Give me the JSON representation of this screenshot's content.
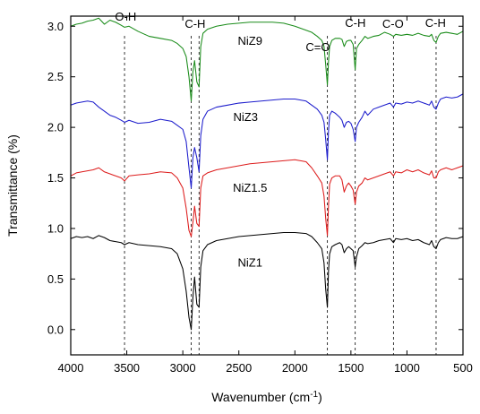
{
  "chart_data": {
    "type": "line",
    "title": "",
    "xlabel": "Wavenumber (cm-1)",
    "xlabel_main": "Wavenumber (cm",
    "xlabel_sup": "-1",
    "xlabel_tail": ")",
    "ylabel": "Transmittance (%)",
    "xlim": [
      4000,
      500
    ],
    "ylim": [
      -0.25,
      3.1
    ],
    "x_ticks": [
      4000,
      3500,
      3000,
      2500,
      2000,
      1500,
      1000,
      500
    ],
    "y_ticks": [
      0.0,
      0.5,
      1.0,
      1.5,
      2.0,
      2.5,
      3.0
    ],
    "reference_lines": [
      3520,
      2925,
      2855,
      1710,
      1462,
      1120,
      740
    ],
    "annotations": [
      {
        "text": "O-H",
        "x": 3510,
        "y": 3.09
      },
      {
        "text": "C-H",
        "x": 2890,
        "y": 3.02
      },
      {
        "text": "C=O",
        "x": 1795,
        "y": 2.79
      },
      {
        "text": "C-H",
        "x": 1460,
        "y": 3.03
      },
      {
        "text": "C-O",
        "x": 1125,
        "y": 3.02
      },
      {
        "text": "C-H",
        "x": 745,
        "y": 3.03
      }
    ],
    "series": [
      {
        "name": "NiZ9",
        "color": "#1a8c1a",
        "label_pos": {
          "x": 2400,
          "y": 2.85
        },
        "x": [
          4000,
          3950,
          3900,
          3850,
          3800,
          3750,
          3700,
          3650,
          3600,
          3550,
          3520,
          3480,
          3400,
          3300,
          3200,
          3100,
          3050,
          3000,
          2970,
          2945,
          2925,
          2910,
          2895,
          2875,
          2855,
          2840,
          2820,
          2780,
          2700,
          2600,
          2500,
          2400,
          2300,
          2200,
          2100,
          2000,
          1900,
          1850,
          1800,
          1760,
          1740,
          1725,
          1710,
          1700,
          1690,
          1670,
          1640,
          1600,
          1580,
          1560,
          1540,
          1520,
          1500,
          1480,
          1462,
          1450,
          1430,
          1400,
          1375,
          1350,
          1300,
          1250,
          1200,
          1150,
          1120,
          1100,
          1050,
          1000,
          950,
          900,
          850,
          800,
          780,
          760,
          740,
          720,
          700,
          650,
          600,
          550,
          500
        ],
        "values": [
          3.0,
          3.02,
          3.03,
          3.05,
          3.06,
          3.08,
          3.02,
          3.06,
          3.04,
          3.01,
          2.99,
          3.0,
          2.95,
          2.9,
          2.88,
          2.86,
          2.83,
          2.78,
          2.7,
          2.5,
          2.26,
          2.55,
          2.66,
          2.45,
          2.4,
          2.8,
          2.93,
          2.97,
          3.0,
          3.02,
          3.03,
          3.04,
          3.04,
          3.04,
          3.03,
          3.0,
          2.96,
          2.94,
          2.9,
          2.86,
          2.8,
          2.62,
          2.42,
          2.65,
          2.8,
          2.86,
          2.88,
          2.88,
          2.87,
          2.8,
          2.85,
          2.86,
          2.86,
          2.82,
          2.57,
          2.78,
          2.82,
          2.86,
          2.9,
          2.88,
          2.9,
          2.91,
          2.94,
          2.92,
          2.9,
          2.92,
          2.91,
          2.92,
          2.91,
          2.93,
          2.91,
          2.9,
          2.92,
          2.86,
          2.84,
          2.9,
          2.93,
          2.94,
          2.93,
          2.92,
          2.95
        ]
      },
      {
        "name": "NiZ3",
        "color": "#1c1ccc",
        "label_pos": {
          "x": 2440,
          "y": 2.1
        },
        "x": [
          4000,
          3950,
          3900,
          3850,
          3800,
          3750,
          3700,
          3650,
          3600,
          3550,
          3520,
          3480,
          3400,
          3300,
          3200,
          3100,
          3050,
          3000,
          2970,
          2945,
          2925,
          2910,
          2895,
          2875,
          2855,
          2840,
          2820,
          2780,
          2700,
          2600,
          2500,
          2400,
          2300,
          2200,
          2100,
          2000,
          1900,
          1850,
          1800,
          1760,
          1740,
          1725,
          1710,
          1700,
          1690,
          1670,
          1640,
          1600,
          1580,
          1560,
          1540,
          1520,
          1500,
          1480,
          1462,
          1450,
          1430,
          1400,
          1375,
          1350,
          1300,
          1250,
          1200,
          1150,
          1120,
          1100,
          1050,
          1000,
          950,
          900,
          850,
          800,
          780,
          760,
          740,
          720,
          700,
          650,
          600,
          550,
          500
        ],
        "values": [
          2.22,
          2.24,
          2.25,
          2.26,
          2.25,
          2.2,
          2.16,
          2.12,
          2.1,
          2.07,
          2.05,
          2.07,
          2.04,
          2.05,
          2.08,
          2.06,
          2.02,
          1.98,
          1.86,
          1.6,
          1.4,
          1.7,
          1.8,
          1.7,
          1.56,
          1.92,
          2.08,
          2.16,
          2.2,
          2.22,
          2.24,
          2.25,
          2.26,
          2.27,
          2.28,
          2.28,
          2.26,
          2.22,
          2.18,
          2.12,
          2.05,
          1.88,
          1.68,
          1.96,
          2.12,
          2.16,
          2.14,
          2.1,
          2.07,
          2.0,
          2.05,
          2.06,
          2.04,
          1.98,
          1.86,
          2.0,
          2.05,
          2.1,
          2.16,
          2.12,
          2.18,
          2.2,
          2.22,
          2.24,
          2.2,
          2.24,
          2.23,
          2.25,
          2.24,
          2.26,
          2.24,
          2.22,
          2.26,
          2.2,
          2.18,
          2.24,
          2.28,
          2.3,
          2.29,
          2.3,
          2.33
        ]
      },
      {
        "name": "NiZ1.5",
        "color": "#dd1c1c",
        "label_pos": {
          "x": 2400,
          "y": 1.4
        },
        "x": [
          4000,
          3950,
          3900,
          3850,
          3800,
          3750,
          3700,
          3650,
          3600,
          3550,
          3520,
          3480,
          3400,
          3300,
          3200,
          3100,
          3050,
          3000,
          2970,
          2945,
          2925,
          2910,
          2895,
          2875,
          2855,
          2840,
          2820,
          2780,
          2700,
          2600,
          2500,
          2400,
          2300,
          2200,
          2100,
          2000,
          1900,
          1850,
          1800,
          1760,
          1740,
          1725,
          1710,
          1700,
          1690,
          1670,
          1640,
          1600,
          1580,
          1560,
          1540,
          1520,
          1500,
          1480,
          1462,
          1450,
          1430,
          1400,
          1375,
          1350,
          1300,
          1250,
          1200,
          1150,
          1120,
          1100,
          1050,
          1000,
          950,
          900,
          850,
          800,
          780,
          760,
          740,
          720,
          700,
          650,
          600,
          550,
          500
        ],
        "values": [
          1.52,
          1.55,
          1.56,
          1.57,
          1.58,
          1.6,
          1.56,
          1.54,
          1.52,
          1.5,
          1.47,
          1.52,
          1.53,
          1.54,
          1.56,
          1.55,
          1.5,
          1.4,
          1.2,
          0.98,
          0.92,
          1.06,
          1.22,
          1.05,
          1.02,
          1.4,
          1.52,
          1.55,
          1.58,
          1.6,
          1.62,
          1.64,
          1.65,
          1.66,
          1.67,
          1.68,
          1.66,
          1.6,
          1.52,
          1.45,
          1.32,
          1.1,
          0.93,
          1.22,
          1.44,
          1.5,
          1.52,
          1.52,
          1.48,
          1.36,
          1.42,
          1.45,
          1.42,
          1.38,
          1.24,
          1.36,
          1.42,
          1.45,
          1.5,
          1.48,
          1.5,
          1.52,
          1.54,
          1.56,
          1.52,
          1.56,
          1.55,
          1.58,
          1.56,
          1.58,
          1.55,
          1.53,
          1.57,
          1.5,
          1.5,
          1.56,
          1.58,
          1.6,
          1.58,
          1.6,
          1.62
        ]
      },
      {
        "name": "NiZ1",
        "color": "#000000",
        "label_pos": {
          "x": 2400,
          "y": 0.66
        },
        "x": [
          4000,
          3950,
          3900,
          3850,
          3800,
          3750,
          3700,
          3650,
          3600,
          3550,
          3520,
          3480,
          3400,
          3300,
          3200,
          3100,
          3050,
          3000,
          2970,
          2945,
          2925,
          2910,
          2895,
          2875,
          2855,
          2840,
          2820,
          2780,
          2700,
          2600,
          2500,
          2400,
          2300,
          2200,
          2100,
          2000,
          1900,
          1850,
          1800,
          1760,
          1740,
          1725,
          1710,
          1700,
          1690,
          1670,
          1640,
          1600,
          1580,
          1560,
          1540,
          1520,
          1500,
          1480,
          1462,
          1450,
          1430,
          1400,
          1375,
          1350,
          1300,
          1250,
          1200,
          1150,
          1120,
          1100,
          1050,
          1000,
          950,
          900,
          850,
          800,
          780,
          760,
          740,
          720,
          700,
          650,
          600,
          550,
          500
        ],
        "values": [
          0.9,
          0.92,
          0.91,
          0.92,
          0.9,
          0.93,
          0.91,
          0.88,
          0.87,
          0.86,
          0.84,
          0.86,
          0.84,
          0.83,
          0.82,
          0.8,
          0.75,
          0.6,
          0.38,
          0.12,
          0.0,
          0.32,
          0.52,
          0.25,
          0.22,
          0.62,
          0.78,
          0.84,
          0.88,
          0.9,
          0.92,
          0.93,
          0.94,
          0.95,
          0.96,
          0.96,
          0.95,
          0.92,
          0.86,
          0.8,
          0.66,
          0.4,
          0.22,
          0.58,
          0.75,
          0.82,
          0.84,
          0.86,
          0.84,
          0.76,
          0.8,
          0.82,
          0.8,
          0.78,
          0.62,
          0.72,
          0.8,
          0.83,
          0.86,
          0.85,
          0.86,
          0.88,
          0.89,
          0.9,
          0.86,
          0.9,
          0.89,
          0.9,
          0.88,
          0.89,
          0.86,
          0.84,
          0.88,
          0.82,
          0.8,
          0.86,
          0.89,
          0.91,
          0.9,
          0.9,
          0.92
        ]
      }
    ]
  }
}
